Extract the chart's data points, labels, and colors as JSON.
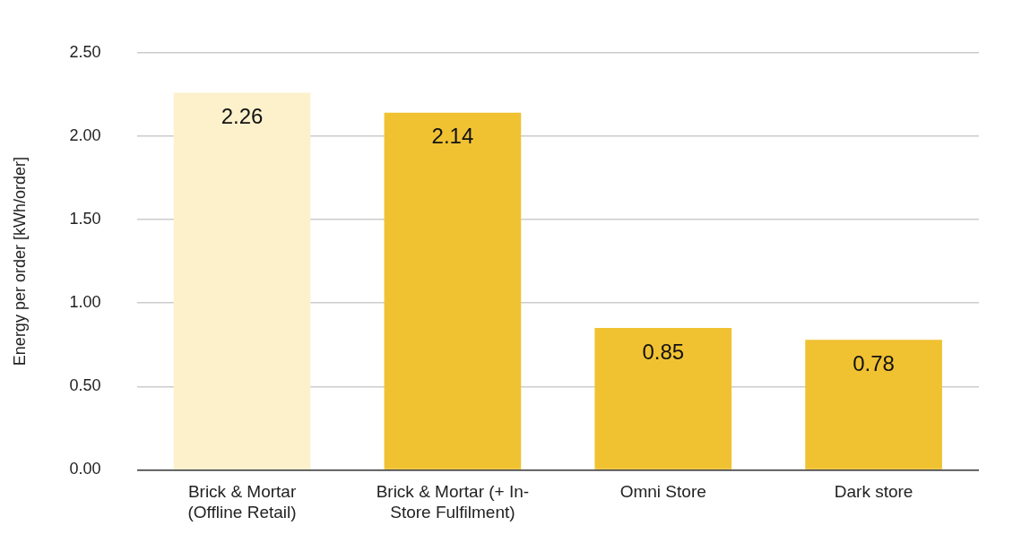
{
  "chart_data": {
    "type": "bar",
    "ylabel": "Energy per order [kWh/order]",
    "categories": [
      "Brick & Mortar (Offline Retail)",
      "Brick & Mortar (+ In-Store Fulfilment)",
      "Omni Store",
      "Dark store"
    ],
    "values": [
      2.26,
      2.14,
      0.85,
      0.78
    ],
    "colors": [
      "#fdf1cc",
      "#f0c232",
      "#f0c232",
      "#f0c232"
    ],
    "ylim": [
      0,
      2.5
    ],
    "yticks": [
      {
        "value": 0,
        "label": "0.00"
      },
      {
        "value": 0.5,
        "label": "0.50"
      },
      {
        "value": 1,
        "label": "1.00"
      },
      {
        "value": 1.5,
        "label": "1.50"
      },
      {
        "value": 2,
        "label": "2.00"
      },
      {
        "value": 2.5,
        "label": "2.50"
      }
    ],
    "grid": "y",
    "data_labels": true
  }
}
